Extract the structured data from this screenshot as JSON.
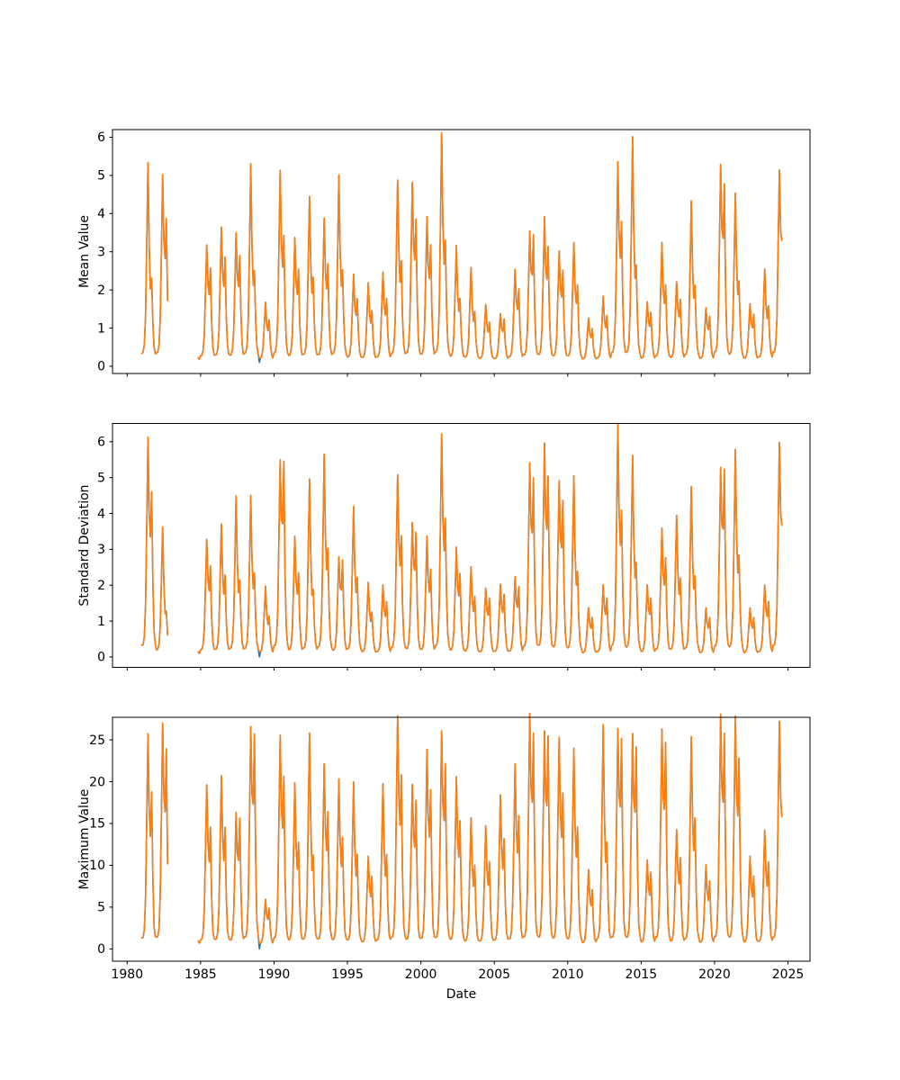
{
  "figure": {
    "background": "#ffffff",
    "x_axis_label": "Date",
    "x_ticks": [
      1980,
      1985,
      1990,
      1995,
      2000,
      2005,
      2010,
      2015,
      2020,
      2025
    ]
  },
  "chart_data": [
    {
      "id": "mean",
      "type": "line",
      "title": "",
      "ylabel": "Mean Value",
      "xlabel": "",
      "x_tick_labels_visible": false,
      "yticks": [
        0,
        1,
        2,
        3,
        4,
        5,
        6
      ],
      "ylim": [
        -0.19,
        6.2
      ],
      "xlim": [
        1979.0,
        2026.5
      ],
      "xticks": [
        1980,
        1985,
        1990,
        1995,
        2000,
        2005,
        2010,
        2015,
        2020,
        2025
      ],
      "grid": false,
      "legend": "none",
      "base": 0.15,
      "segments": [
        [
          1981.0,
          1982.79
        ],
        [
          1984.83,
          2024.65
        ]
      ],
      "seasonal_profile": {
        "w1": [
          0.03,
          0.04,
          0.08,
          0.22,
          0.6,
          1.0,
          0.5,
          0.18,
          0.08,
          0.05,
          0.03,
          0.02
        ],
        "w2": [
          0.02,
          0.01,
          0.01,
          0.02,
          0.05,
          0.08,
          0.25,
          0.55,
          1.0,
          0.4,
          0.12,
          0.04
        ]
      },
      "series": [
        {
          "name": "series-0",
          "color": "#1f77b4",
          "dip": {
            "x": 1989.0,
            "value": 0.1
          }
        },
        {
          "name": "series-1",
          "color": "#ff7f0e"
        }
      ],
      "annual_peaks": {
        "1981": [
          5.2,
          1.9
        ],
        "1982": [
          4.75,
          3.5
        ],
        "1984": [
          0.8,
          0.6
        ],
        "1985": [
          3.0,
          2.35
        ],
        "1986": [
          3.45,
          2.6
        ],
        "1987": [
          3.3,
          2.65
        ],
        "1988": [
          5.15,
          2.1
        ],
        "1989": [
          1.6,
          1.1
        ],
        "1990": [
          4.9,
          3.05
        ],
        "1991": [
          3.2,
          2.3
        ],
        "1992": [
          4.3,
          2.0
        ],
        "1993": [
          3.7,
          2.4
        ],
        "1994": [
          4.85,
          2.15
        ],
        "1995": [
          2.3,
          1.6
        ],
        "1996": [
          2.1,
          1.3
        ],
        "1997": [
          2.35,
          1.6
        ],
        "1998": [
          4.7,
          2.4
        ],
        "1999": [
          4.55,
          3.5
        ],
        "2000": [
          3.7,
          2.9
        ],
        "2001": [
          5.9,
          2.85
        ],
        "2002": [
          3.05,
          1.55
        ],
        "2003": [
          2.5,
          1.25
        ],
        "2004": [
          1.55,
          1.05
        ],
        "2005": [
          1.3,
          1.15
        ],
        "2006": [
          2.4,
          1.85
        ],
        "2007": [
          3.3,
          3.2
        ],
        "2008": [
          3.7,
          2.85
        ],
        "2009": [
          2.85,
          2.3
        ],
        "2010": [
          3.1,
          1.9
        ],
        "2011": [
          1.2,
          0.9
        ],
        "2012": [
          1.75,
          1.2
        ],
        "2013": [
          5.1,
          3.4
        ],
        "2014": [
          5.85,
          2.2
        ],
        "2015": [
          1.6,
          1.3
        ],
        "2016": [
          3.1,
          1.9
        ],
        "2017": [
          2.1,
          1.6
        ],
        "2018": [
          4.2,
          1.8
        ],
        "2019": [
          1.45,
          1.2
        ],
        "2020": [
          4.95,
          4.4
        ],
        "2021": [
          4.4,
          1.9
        ],
        "2022": [
          1.55,
          1.25
        ],
        "2023": [
          2.45,
          1.4
        ],
        "2024": [
          4.8,
          4.35
        ]
      }
    },
    {
      "id": "std",
      "type": "line",
      "title": "",
      "ylabel": "Standard Deviation",
      "xlabel": "",
      "x_tick_labels_visible": false,
      "yticks": [
        0,
        1,
        2,
        3,
        4,
        5,
        6
      ],
      "ylim": [
        -0.29,
        6.51
      ],
      "xlim": [
        1979.0,
        2026.5
      ],
      "xticks": [
        1980,
        1985,
        1990,
        1995,
        2000,
        2005,
        2010,
        2015,
        2020,
        2025
      ],
      "grid": false,
      "legend": "none",
      "base": 0.07,
      "segments": [
        [
          1981.0,
          1982.79
        ],
        [
          1984.83,
          2024.65
        ]
      ],
      "seasonal_profile": {
        "w1": [
          0.03,
          0.04,
          0.08,
          0.22,
          0.6,
          1.0,
          0.5,
          0.18,
          0.08,
          0.05,
          0.03,
          0.02
        ],
        "w2": [
          0.02,
          0.01,
          0.01,
          0.02,
          0.05,
          0.08,
          0.25,
          0.55,
          1.0,
          0.4,
          0.12,
          0.04
        ]
      },
      "series": [
        {
          "name": "series-0",
          "color": "#1f77b4",
          "dip": {
            "x": 1989.0,
            "value": 0.0
          }
        },
        {
          "name": "series-1",
          "color": "#ff7f0e"
        }
      ],
      "annual_peaks": {
        "1981": [
          5.8,
          4.15
        ],
        "1982": [
          3.55,
          1.0
        ],
        "1984": [
          0.7,
          0.5
        ],
        "1985": [
          3.1,
          2.3
        ],
        "1986": [
          3.55,
          2.0
        ],
        "1987": [
          4.35,
          1.8
        ],
        "1988": [
          4.35,
          2.0
        ],
        "1989": [
          1.9,
          1.0
        ],
        "1990": [
          5.1,
          5.05
        ],
        "1991": [
          3.2,
          2.1
        ],
        "1992": [
          4.85,
          1.5
        ],
        "1993": [
          5.45,
          2.6
        ],
        "1994": [
          2.6,
          2.5
        ],
        "1995": [
          4.05,
          1.9
        ],
        "1996": [
          2.0,
          1.1
        ],
        "1997": [
          1.9,
          1.4
        ],
        "1998": [
          4.85,
          3.0
        ],
        "1999": [
          3.5,
          3.2
        ],
        "2000": [
          3.2,
          2.2
        ],
        "2001": [
          5.95,
          3.4
        ],
        "2002": [
          2.9,
          2.1
        ],
        "2003": [
          2.4,
          1.5
        ],
        "2004": [
          1.8,
          1.5
        ],
        "2005": [
          1.9,
          1.6
        ],
        "2006": [
          2.1,
          1.8
        ],
        "2007": [
          5.05,
          4.6
        ],
        "2008": [
          5.6,
          4.6
        ],
        "2009": [
          4.6,
          4.0
        ],
        "2010": [
          4.9,
          2.0
        ],
        "2011": [
          1.3,
          1.0
        ],
        "2012": [
          1.9,
          1.5
        ],
        "2013": [
          6.2,
          3.6
        ],
        "2014": [
          5.45,
          2.2
        ],
        "2015": [
          1.9,
          1.5
        ],
        "2016": [
          3.4,
          2.5
        ],
        "2017": [
          3.8,
          1.9
        ],
        "2018": [
          4.6,
          1.9
        ],
        "2019": [
          1.3,
          1.0
        ],
        "2020": [
          4.9,
          4.85
        ],
        "2021": [
          5.6,
          2.4
        ],
        "2022": [
          1.3,
          1.0
        ],
        "2023": [
          1.9,
          1.4
        ],
        "2024": [
          5.6,
          4.8
        ]
      }
    },
    {
      "id": "max",
      "type": "line",
      "title": "",
      "ylabel": "Maximum Value",
      "xlabel": "Date",
      "x_tick_labels_visible": true,
      "yticks": [
        0,
        5,
        10,
        15,
        20,
        25
      ],
      "ylim": [
        -1.47,
        27.7
      ],
      "xlim": [
        1979.0,
        2026.5
      ],
      "xticks": [
        1980,
        1985,
        1990,
        1995,
        2000,
        2005,
        2010,
        2015,
        2020,
        2025
      ],
      "grid": false,
      "legend": "none",
      "base": 0.5,
      "segments": [
        [
          1981.0,
          1982.79
        ],
        [
          1984.83,
          2024.65
        ]
      ],
      "seasonal_profile": {
        "w1": [
          0.02,
          0.03,
          0.07,
          0.22,
          0.6,
          1.0,
          0.5,
          0.16,
          0.07,
          0.04,
          0.02,
          0.02
        ],
        "w2": [
          0.02,
          0.01,
          0.01,
          0.02,
          0.05,
          0.08,
          0.25,
          0.55,
          1.0,
          0.4,
          0.1,
          0.03
        ]
      },
      "series": [
        {
          "name": "series-0",
          "color": "#1f77b4",
          "dip": {
            "x": 1989.0,
            "value": 0.0
          }
        },
        {
          "name": "series-1",
          "color": "#ff7f0e"
        }
      ],
      "annual_peaks": {
        "1981": [
          24.4,
          17.1
        ],
        "1982": [
          25.3,
          22.2
        ],
        "1984": [
          5.0,
          4.0
        ],
        "1985": [
          18.6,
          13.3
        ],
        "1986": [
          19.7,
          13.2
        ],
        "1987": [
          15.2,
          14.6
        ],
        "1988": [
          24.7,
          24.0
        ],
        "1989": [
          5.6,
          4.5
        ],
        "1990": [
          24.1,
          19.0
        ],
        "1991": [
          19.0,
          11.5
        ],
        "1992": [
          25.1,
          9.5
        ],
        "1993": [
          21.0,
          15.0
        ],
        "1994": [
          19.4,
          12.0
        ],
        "1995": [
          19.2,
          10.0
        ],
        "1996": [
          10.5,
          8.0
        ],
        "1997": [
          19.0,
          10.0
        ],
        "1998": [
          26.4,
          19.0
        ],
        "1999": [
          18.4,
          16.5
        ],
        "2000": [
          22.5,
          17.5
        ],
        "2001": [
          24.5,
          20.5
        ],
        "2002": [
          19.5,
          14.0
        ],
        "2003": [
          15.0,
          9.0
        ],
        "2004": [
          14.0,
          9.5
        ],
        "2005": [
          17.5,
          12.0
        ],
        "2006": [
          21.0,
          14.5
        ],
        "2007": [
          26.3,
          24.0
        ],
        "2008": [
          24.2,
          23.8
        ],
        "2009": [
          24.0,
          17.0
        ],
        "2010": [
          23.0,
          13.0
        ],
        "2011": [
          9.0,
          6.5
        ],
        "2012": [
          26.0,
          11.0
        ],
        "2013": [
          24.5,
          23.5
        ],
        "2014": [
          24.0,
          22.5
        ],
        "2015": [
          10.0,
          8.5
        ],
        "2016": [
          24.5,
          23.0
        ],
        "2017": [
          13.5,
          10.0
        ],
        "2018": [
          24.3,
          14.0
        ],
        "2019": [
          9.5,
          7.5
        ],
        "2020": [
          26.2,
          24.0
        ],
        "2021": [
          26.2,
          21.0
        ],
        "2022": [
          10.5,
          8.0
        ],
        "2023": [
          13.5,
          9.5
        ],
        "2024": [
          25.6,
          21.0
        ]
      }
    }
  ]
}
